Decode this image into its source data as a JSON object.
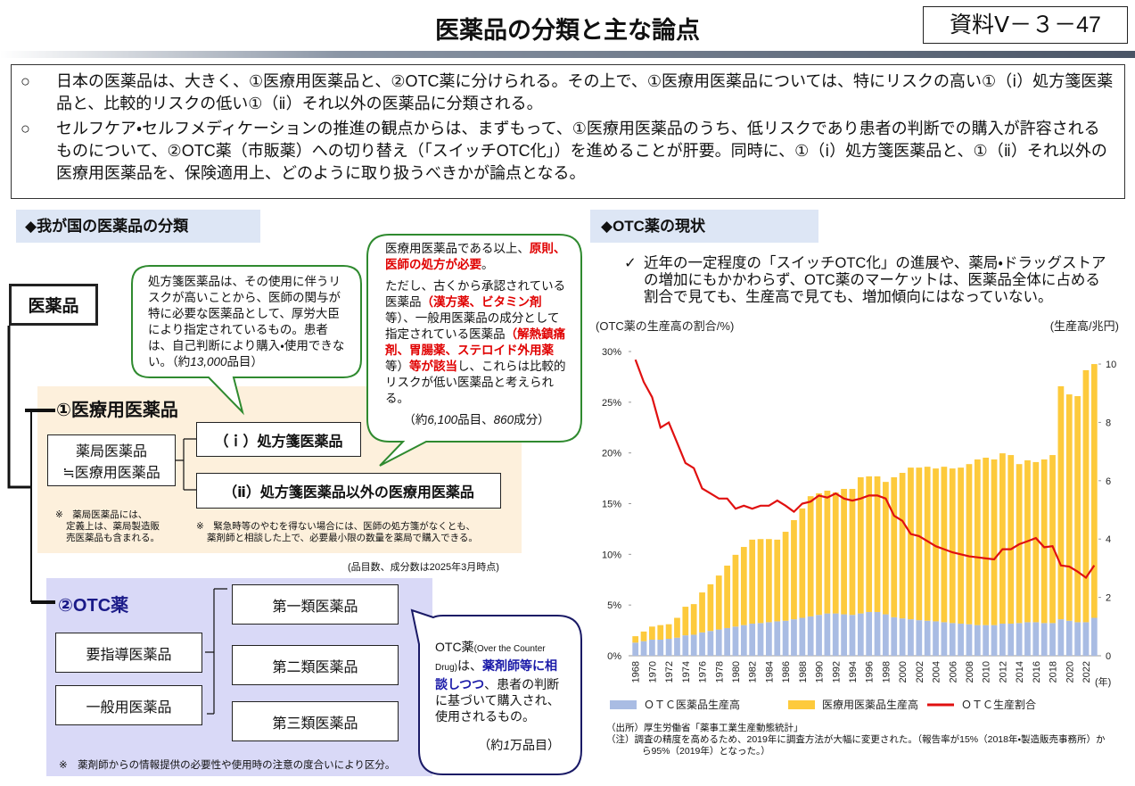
{
  "header": {
    "title": "医薬品の分類と主な論点",
    "doc_id": "資料Ⅴ－３－47"
  },
  "summary": [
    {
      "marker": "○",
      "text": "日本の医薬品は、大きく、①医療用医薬品と、②OTC薬に分けられる。その上で、①医療用医薬品については、特にリスクの高い①（ⅰ）処方箋医薬品と、比較的リスクの低い①（ⅱ）それ以外の医薬品に分類される。"
    },
    {
      "marker": "○",
      "text": "セルフケア・セルフメディケーションの推進の観点からは、まずもって、①医療用医薬品のうち、低リスクであり患者の判断での購入が許容されるものについて、②OTC薬（市販薬）への切り替え（「スイッチOTC化」）を進めることが肝要。同時に、①（ⅰ）処方箋医薬品と、①（ⅱ）それ以外の医療用医薬品を、保険適用上、どのように取り扱うべきかが論点となる。"
    }
  ],
  "classification": {
    "heading": "◆我が国の医薬品の分類",
    "root": "医薬品",
    "medical": {
      "title": "①医療用医薬品",
      "pharmacy_box": [
        "薬局医薬品",
        "≒医療用医薬品"
      ],
      "prescription": "（ｉ）処方箋医薬品",
      "non_prescription": "（ⅱ）処方箋医薬品以外の医療用医薬品",
      "note_pharmacy": [
        "※　薬局医薬品には、",
        "定義上は、薬局製造販",
        "売医薬品も含まれる。"
      ],
      "note_emergency": [
        "※　緊急時等のやむを得ない場合には、医師の処方箋がなくとも、",
        "薬剤師と相談した上で、必要最小限の数量を薬局で購入できる。"
      ]
    },
    "as_of": "(品目数、成分数は2025年3月時点)",
    "otc": {
      "title": "②OTC薬",
      "left": [
        "要指導医薬品",
        "一般用医薬品"
      ],
      "right": [
        "第一類医薬品",
        "第二類医薬品",
        "第三類医薬品"
      ],
      "note": "※　薬剤師からの情報提供の必要性や使用時の注意の度合いにより区分。"
    },
    "bubble_prescription": [
      "処方箋医薬品は、その使用に伴うリスクが高いことから、医師の関与が特に必要な医薬品として、厚労大臣により指定されているもの。患者は、自己判断により購入・使用できない。（約",
      "13,000",
      "品目）"
    ],
    "bubble_medical": [
      "医療用医薬品である以上、",
      "原則、医師の処方が必要",
      "。",
      "ただし、古くから承認されている医薬品",
      "（漢方薬、ビタミン剤",
      "等）、一般用医薬品の成分として指定されている医薬品",
      "（解熱鎮痛剤、胃腸薬、ステロイド外用薬",
      "等）",
      "等が該当",
      "し、これらは比較的リスクが低い医薬品と考えられる。",
      "（約",
      "6,100",
      "品目、",
      "860",
      "成分）"
    ],
    "bubble_otc": [
      "OTC薬",
      "(Over the Counter Drug)",
      "は、",
      "薬剤師等に相談しつつ",
      "、患者の判断に基づいて購入され、使用されるもの。",
      "（約",
      "1",
      "万品目）"
    ]
  },
  "otc_status": {
    "heading": "◆OTC薬の現状",
    "bullet_marker": "✓",
    "bullet": "近年の一定程度の「スイッチOTC化」の進展や、薬局・ドラッグストアの増加にもかかわらず、OTC薬のマーケットは、医薬品全体に占める割合で見ても、生産高で見ても、増加傾向にはなっていない。",
    "source": "（出所）厚生労働省「薬事工業生産動態統計」",
    "note": "（注）調査の精度を高めるため、2019年に調査方法が大幅に変更された。（報告率が15%（2018年・製造販売事務所）から95%（2019年）となった。）"
  },
  "chart_data": {
    "type": "bar",
    "stacked": true,
    "ylabel": "(OTC薬の生産高の割合/%)",
    "y2label": "(生産高/兆円)",
    "xlabel": "(年)",
    "categories": [
      "1968",
      null,
      "1970",
      null,
      "1972",
      null,
      "1974",
      null,
      "1976",
      null,
      "1978",
      null,
      "1980",
      null,
      "1982",
      null,
      "1984",
      null,
      "1986",
      null,
      "1988",
      null,
      "1990",
      null,
      "1992",
      null,
      "1994",
      null,
      "1996",
      null,
      "1998",
      null,
      "2000",
      null,
      "2002",
      null,
      "2004",
      null,
      "2006",
      null,
      "2008",
      null,
      "2010",
      null,
      "2012",
      null,
      "2014",
      null,
      "2016",
      null,
      "2018",
      null,
      "2020",
      null,
      "2022",
      null
    ],
    "ylim": [
      0,
      30
    ],
    "yticks": [
      {
        "value": 0,
        "label": "0%"
      },
      {
        "value": 5,
        "label": "5%"
      },
      {
        "value": 10,
        "label": "10%"
      },
      {
        "value": 15,
        "label": "15%"
      },
      {
        "value": 20,
        "label": "20%"
      },
      {
        "value": 25,
        "label": "25%"
      },
      {
        "value": 30,
        "label": "30%"
      }
    ],
    "y2lim": [
      0,
      10.43
    ],
    "y2ticks": [
      0,
      2,
      4,
      6,
      8,
      10
    ],
    "series": [
      {
        "name": "ＯＴＣ医薬品生産高",
        "color": "#a9bce3",
        "type": "bar",
        "axis": "y2",
        "values": [
          0.45,
          0.5,
          0.55,
          0.55,
          0.58,
          0.62,
          0.7,
          0.72,
          0.8,
          0.85,
          0.9,
          0.95,
          1.0,
          1.05,
          1.1,
          1.12,
          1.15,
          1.18,
          1.2,
          1.25,
          1.3,
          1.35,
          1.4,
          1.45,
          1.45,
          1.42,
          1.4,
          1.45,
          1.5,
          1.5,
          1.42,
          1.32,
          1.28,
          1.25,
          1.22,
          1.2,
          1.18,
          1.15,
          1.12,
          1.1,
          1.08,
          1.05,
          1.05,
          1.05,
          1.1,
          1.1,
          1.12,
          1.15,
          1.15,
          1.12,
          1.12,
          1.25,
          1.2,
          1.15,
          1.15,
          1.3
        ]
      },
      {
        "name": "医療用医薬品生産高",
        "color": "#fdca3c",
        "type": "bar",
        "axis": "y2",
        "values": [
          0.22,
          0.33,
          0.45,
          0.5,
          0.5,
          0.68,
          0.98,
          1.05,
          1.37,
          1.6,
          1.85,
          2.14,
          2.46,
          2.68,
          2.88,
          2.88,
          2.85,
          2.8,
          3.05,
          3.4,
          3.75,
          4.12,
          4.17,
          4.21,
          4.15,
          4.3,
          4.32,
          4.67,
          4.65,
          4.65,
          4.54,
          4.8,
          4.99,
          5.2,
          5.23,
          5.28,
          5.24,
          5.33,
          5.3,
          5.35,
          5.49,
          5.68,
          5.74,
          5.68,
          5.84,
          5.78,
          5.45,
          5.55,
          5.49,
          5.61,
          5.76,
          7.99,
          7.76,
          7.75,
          8.64,
          8.7
        ]
      },
      {
        "name": "ＯＴＣ生産割合",
        "color": "#e01010",
        "type": "line",
        "values": [
          29.2,
          27,
          25.5,
          22.5,
          23,
          21,
          19,
          18.5,
          16.5,
          16,
          15.5,
          15.5,
          14.5,
          14.8,
          14.5,
          14.8,
          14.8,
          15.3,
          14.8,
          14.2,
          15,
          15.2,
          15.8,
          15.6,
          16,
          15.5,
          15.3,
          15.5,
          15.8,
          15.8,
          15.5,
          13.8,
          13.3,
          12,
          11.8,
          11.3,
          10.8,
          10.5,
          10.2,
          10,
          9.8,
          9.7,
          9.6,
          9.5,
          10.5,
          10.5,
          11,
          11.3,
          11.6,
          10.7,
          10.8,
          8.9,
          8.8,
          8.3,
          7.7,
          8.9
        ]
      }
    ]
  }
}
